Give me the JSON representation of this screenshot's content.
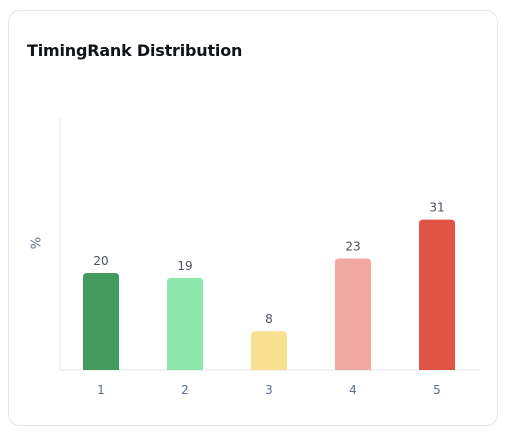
{
  "card": {
    "title": "TimingRank Distribution"
  },
  "chart_data": {
    "type": "bar",
    "title": "TimingRank Distribution",
    "xlabel": "",
    "ylabel": "%",
    "categories": [
      "1",
      "2",
      "3",
      "4",
      "5"
    ],
    "values": [
      20,
      19,
      8,
      23,
      31
    ],
    "data_labels": [
      "20",
      "19",
      "8",
      "23",
      "31"
    ],
    "colors": [
      "#439a5e",
      "#8ee7ad",
      "#f8e090",
      "#f2a8a2",
      "#e05345"
    ],
    "ylim": [
      0,
      40
    ],
    "grid": false,
    "legend": "none"
  },
  "colors": {
    "axis": "#e4e7ee",
    "tick_text": "#5b6f8f",
    "label_text": "#4c525c",
    "title_text": "#101418",
    "card_border": "#e3e6ec"
  }
}
